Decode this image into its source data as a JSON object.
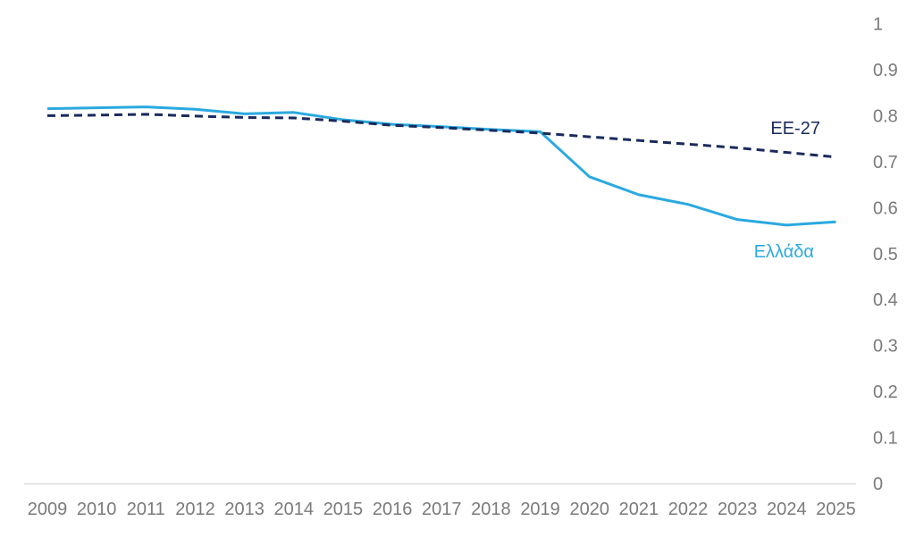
{
  "chart_data": {
    "type": "line",
    "title": "",
    "xlabel": "",
    "ylabel": "",
    "x": [
      "2009",
      "2010",
      "2011",
      "2012",
      "2013",
      "2014",
      "2015",
      "2016",
      "2017",
      "2018",
      "2019",
      "2020",
      "2021",
      "2022",
      "2023",
      "2024",
      "2025"
    ],
    "series": [
      {
        "name": "Ελλάδα",
        "color": "#2AA9DF",
        "line_style": "solid",
        "values": [
          0.815,
          0.817,
          0.819,
          0.814,
          0.804,
          0.807,
          0.791,
          0.781,
          0.776,
          0.77,
          0.765,
          0.667,
          0.628,
          0.607,
          0.574,
          0.562,
          0.569
        ]
      },
      {
        "name": "EE-27",
        "color": "#1A2A5C",
        "line_style": "dashed",
        "values": [
          0.8,
          0.801,
          0.803,
          0.799,
          0.796,
          0.795,
          0.788,
          0.779,
          0.774,
          0.768,
          0.762,
          0.754,
          0.746,
          0.738,
          0.73,
          0.72,
          0.71
        ]
      }
    ],
    "ylim": [
      0,
      1
    ],
    "yticks": [
      "0",
      "0.1",
      "0.2",
      "0.3",
      "0.4",
      "0.5",
      "0.6",
      "0.7",
      "0.8",
      "0.9",
      "1"
    ],
    "ytick_side": "right",
    "grid": false,
    "legend_position": "inline-end-labels",
    "axis_color": "#D9D9D9",
    "tick_label_color": "#7A7A7A",
    "background": "#FFFFFF"
  }
}
